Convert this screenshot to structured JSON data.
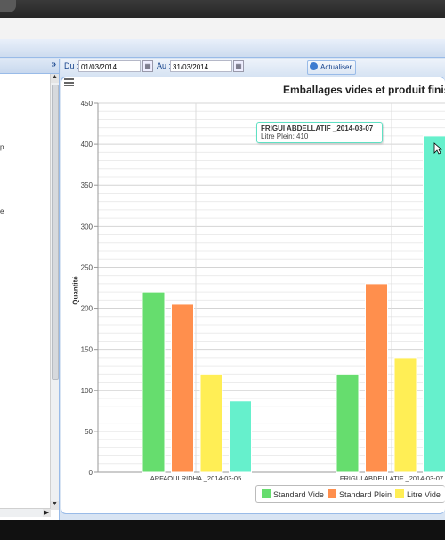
{
  "toolbar": {
    "du_label": "Du :",
    "du_value": "01/03/2014",
    "au_label": "Au :",
    "au_value": "31/03/2014",
    "refresh_label": "Actualiser"
  },
  "left_panel": {
    "collapse_icon": "»",
    "edge_text_1": "p",
    "edge_text_2": "e"
  },
  "tooltip": {
    "title": "FRIGUI ABDELLATIF _2014-03-07",
    "value": "Litre Plein: 410"
  },
  "colors": {
    "standard_vide": "#66dd6e",
    "standard_plein": "#ff8f4d",
    "litre_vide": "#ffee55",
    "litre_plein": "#66f0cc"
  },
  "chart_data": {
    "type": "bar",
    "title": "Emballages vides et produit finis (V",
    "ylabel": "Quantité",
    "xlabel": "",
    "ylim": [
      0,
      450
    ],
    "yticks": [
      0,
      50,
      100,
      150,
      200,
      250,
      300,
      350,
      400,
      450
    ],
    "grid": true,
    "legend_position": "bottom",
    "categories": [
      "ARFAOUI RIDHA _2014-03-05",
      "FRIGUI ABDELLATIF _2014-03-07"
    ],
    "series": [
      {
        "name": "Standard Vide",
        "values": [
          220,
          120
        ]
      },
      {
        "name": "Standard Plein",
        "values": [
          205,
          230
        ]
      },
      {
        "name": "Litre Vide",
        "values": [
          120,
          140
        ]
      },
      {
        "name": "Litre Plein",
        "values": [
          87,
          410
        ]
      }
    ]
  }
}
